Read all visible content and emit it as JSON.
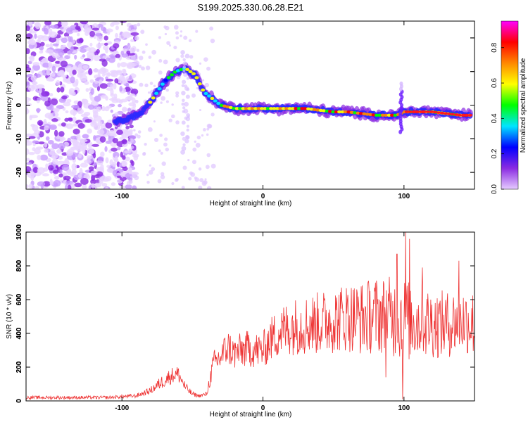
{
  "chart_data": [
    {
      "type": "heatmap",
      "title": "S199.2025.330.06.28.E21",
      "xlabel": "Height of straight line (km)",
      "ylabel": "Frequency (Hz)",
      "xlim": [
        -168,
        150
      ],
      "ylim": [
        -25,
        25
      ],
      "xticks": [
        -100,
        0,
        100
      ],
      "xtick_labels": [
        "-100",
        "0",
        "100"
      ],
      "yticks": [
        -20,
        -10,
        0,
        10,
        20
      ],
      "ytick_labels": [
        "-20",
        "-10",
        "0",
        "10",
        "20"
      ],
      "colorbar": {
        "label": "Normalized spectral amplitude",
        "range": [
          0,
          0.95
        ],
        "ticks": [
          0.0,
          0.2,
          0.4,
          0.6,
          0.8
        ],
        "tick_labels": [
          "0.0",
          "0.2",
          "0.4",
          "0.6",
          "0.8"
        ],
        "colors": [
          "#e6ccff",
          "#8a2be2",
          "#0000ff",
          "#00e5ff",
          "#00ff00",
          "#ffff00",
          "#ff8800",
          "#ff0000",
          "#ff00ff"
        ]
      },
      "ridge": {
        "x": [
          -105,
          -95,
          -85,
          -78,
          -70,
          -62,
          -55,
          -48,
          -42,
          -36,
          -30,
          -20,
          -10,
          0,
          10,
          20,
          30,
          40,
          50,
          60,
          70,
          80,
          90,
          95,
          100,
          110,
          120,
          130,
          140,
          148
        ],
        "y": [
          -5,
          -4,
          -2,
          2,
          7,
          10,
          11,
          9,
          4,
          2,
          0,
          -1,
          -1,
          -1,
          -1,
          -1,
          -1,
          -1.5,
          -2,
          -2,
          -2.5,
          -3,
          -3,
          -3,
          -2,
          -2,
          -2,
          -2.5,
          -3,
          -3
        ]
      },
      "colorbar_position": "right"
    },
    {
      "type": "line",
      "xlabel": "Height of straight line (km)",
      "ylabel": "SNR (10 * v/v)",
      "xlim": [
        -168,
        150
      ],
      "ylim": [
        0,
        1000
      ],
      "xticks": [
        -100,
        0,
        100
      ],
      "xtick_labels": [
        "-100",
        "0",
        "100"
      ],
      "yticks": [
        0,
        200,
        400,
        600,
        800,
        1000
      ],
      "ytick_labels": [
        "0",
        "200",
        "400",
        "600",
        "800",
        "1000"
      ],
      "line_color": "#ee3333",
      "series": [
        {
          "name": "SNR",
          "x": [
            -168,
            -150,
            -130,
            -110,
            -90,
            -80,
            -72,
            -65,
            -60,
            -55,
            -50,
            -45,
            -40,
            -35,
            -30,
            -25,
            -20,
            -15,
            -10,
            -5,
            0,
            5,
            10,
            20,
            30,
            40,
            50,
            60,
            70,
            80,
            90,
            100,
            110,
            120,
            130,
            140,
            150
          ],
          "y": [
            20,
            20,
            20,
            20,
            30,
            60,
            110,
            150,
            160,
            80,
            40,
            30,
            40,
            220,
            260,
            320,
            280,
            300,
            310,
            300,
            300,
            360,
            400,
            440,
            450,
            460,
            480,
            500,
            490,
            510,
            500,
            480,
            470,
            460,
            450,
            480,
            460
          ],
          "noise_amplitude": [
            10,
            10,
            10,
            10,
            12,
            20,
            40,
            50,
            50,
            30,
            15,
            10,
            15,
            80,
            90,
            110,
            100,
            110,
            110,
            110,
            110,
            130,
            150,
            170,
            180,
            190,
            200,
            210,
            220,
            230,
            240,
            260,
            230,
            210,
            200,
            200,
            200
          ],
          "spikes": [
            {
              "x": 95,
              "y": 870
            },
            {
              "x": 101,
              "y": 1000
            },
            {
              "x": 104,
              "y": 960
            },
            {
              "x": 113,
              "y": 790
            },
            {
              "x": 139,
              "y": 830
            },
            {
              "x": 87,
              "y": 140
            },
            {
              "x": 99,
              "y": 10
            }
          ]
        }
      ]
    }
  ]
}
